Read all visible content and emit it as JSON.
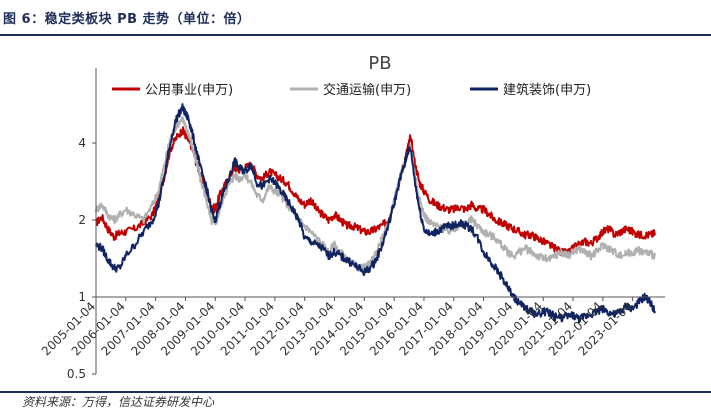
{
  "figure": {
    "title": "图 6：稳定类板块 PB 走势（单位：倍）",
    "source": "资料来源：万得，信达证券研发中心"
  },
  "chart_data": {
    "type": "line",
    "title": "PB",
    "xlabel": "",
    "ylabel": "",
    "y_scale": "log",
    "ylim": [
      0.5,
      6
    ],
    "yticks": [
      0.5,
      1,
      2,
      4
    ],
    "ytick_labels": [
      "0.5",
      "1",
      "2",
      "4"
    ],
    "xlim": [
      2005.0,
      2023.75
    ],
    "xticks": [
      2005.0,
      2006.0,
      2007.0,
      2008.0,
      2009.0,
      2010.0,
      2011.0,
      2012.0,
      2013.0,
      2014.0,
      2015.0,
      2016.0,
      2017.0,
      2018.0,
      2019.0,
      2020.0,
      2021.0,
      2022.0,
      2023.0
    ],
    "xtick_labels": [
      "2005-01-04",
      "2006-01-04",
      "2007-01-04",
      "2008-01-04",
      "2009-01-04",
      "2010-01-04",
      "2011-01-04",
      "2012-01-04",
      "2013-01-04",
      "2014-01-04",
      "2015-01-04",
      "2016-01-04",
      "2017-01-04",
      "2018-01-04",
      "2019-01-04",
      "2020-01-04",
      "2021-01-04",
      "2022-01-04",
      "2023-01-04"
    ],
    "legend_position": "top",
    "series": [
      {
        "name": "公用事业(申万)",
        "color": "#c00000",
        "x": [
          2005.0,
          2005.2,
          2005.4,
          2005.6,
          2005.8,
          2006.0,
          2006.3,
          2006.6,
          2006.9,
          2007.1,
          2007.3,
          2007.5,
          2007.7,
          2007.9,
          2008.0,
          2008.1,
          2008.2,
          2008.35,
          2008.5,
          2008.7,
          2008.85,
          2009.0,
          2009.15,
          2009.3,
          2009.5,
          2009.65,
          2009.8,
          2010.0,
          2010.2,
          2010.4,
          2010.6,
          2010.8,
          2011.0,
          2011.2,
          2011.4,
          2011.6,
          2011.8,
          2012.0,
          2012.2,
          2012.4,
          2012.6,
          2012.8,
          2013.0,
          2013.2,
          2013.4,
          2013.6,
          2013.8,
          2014.0,
          2014.2,
          2014.4,
          2014.6,
          2014.8,
          2015.0,
          2015.2,
          2015.35,
          2015.45,
          2015.55,
          2015.7,
          2015.85,
          2016.0,
          2016.2,
          2016.4,
          2016.6,
          2016.8,
          2017.0,
          2017.2,
          2017.4,
          2017.6,
          2017.8,
          2018.0,
          2018.2,
          2018.4,
          2018.6,
          2018.8,
          2019.0,
          2019.2,
          2019.4,
          2019.6,
          2019.8,
          2020.0,
          2020.2,
          2020.4,
          2020.6,
          2020.8,
          2021.0,
          2021.2,
          2021.4,
          2021.6,
          2021.8,
          2022.0,
          2022.2,
          2022.4,
          2022.6,
          2022.8,
          2023.0,
          2023.2,
          2023.4,
          2023.6,
          2023.75
        ],
        "values": [
          1.95,
          2.05,
          1.85,
          1.72,
          1.78,
          1.8,
          1.85,
          1.95,
          2.1,
          2.4,
          3.0,
          3.8,
          4.2,
          4.5,
          4.3,
          4.1,
          3.9,
          3.4,
          3.0,
          2.6,
          2.3,
          2.2,
          2.5,
          2.7,
          3.0,
          3.2,
          3.15,
          3.2,
          3.3,
          3.0,
          2.9,
          3.1,
          3.0,
          2.9,
          2.8,
          2.6,
          2.4,
          2.3,
          2.4,
          2.2,
          2.1,
          2.0,
          2.1,
          2.0,
          1.9,
          1.9,
          1.85,
          1.8,
          1.8,
          1.85,
          1.9,
          2.0,
          2.4,
          2.9,
          3.4,
          3.8,
          4.2,
          3.3,
          2.8,
          2.6,
          2.4,
          2.3,
          2.25,
          2.2,
          2.2,
          2.25,
          2.2,
          2.3,
          2.2,
          2.2,
          2.1,
          2.0,
          1.95,
          1.9,
          1.85,
          1.8,
          1.75,
          1.75,
          1.7,
          1.65,
          1.6,
          1.55,
          1.5,
          1.48,
          1.55,
          1.6,
          1.65,
          1.62,
          1.7,
          1.8,
          1.85,
          1.75,
          1.8,
          1.85,
          1.8,
          1.75,
          1.75,
          1.75,
          1.78
        ]
      },
      {
        "name": "交通运输(申万)",
        "color": "#b0b0b0",
        "x": [
          2005.0,
          2005.2,
          2005.4,
          2005.6,
          2005.8,
          2006.0,
          2006.3,
          2006.6,
          2006.9,
          2007.1,
          2007.3,
          2007.5,
          2007.7,
          2007.9,
          2008.0,
          2008.1,
          2008.2,
          2008.35,
          2008.5,
          2008.7,
          2008.85,
          2009.0,
          2009.15,
          2009.3,
          2009.5,
          2009.65,
          2009.8,
          2010.0,
          2010.2,
          2010.4,
          2010.6,
          2010.8,
          2011.0,
          2011.2,
          2011.4,
          2011.6,
          2011.8,
          2012.0,
          2012.2,
          2012.4,
          2012.6,
          2012.8,
          2013.0,
          2013.2,
          2013.4,
          2013.6,
          2013.8,
          2014.0,
          2014.2,
          2014.4,
          2014.6,
          2014.8,
          2015.0,
          2015.2,
          2015.35,
          2015.45,
          2015.55,
          2015.7,
          2015.85,
          2016.0,
          2016.2,
          2016.4,
          2016.6,
          2016.8,
          2017.0,
          2017.2,
          2017.4,
          2017.6,
          2017.8,
          2018.0,
          2018.2,
          2018.4,
          2018.6,
          2018.8,
          2019.0,
          2019.2,
          2019.4,
          2019.6,
          2019.8,
          2020.0,
          2020.2,
          2020.4,
          2020.6,
          2020.8,
          2021.0,
          2021.2,
          2021.4,
          2021.6,
          2021.8,
          2022.0,
          2022.2,
          2022.4,
          2022.6,
          2022.8,
          2023.0,
          2023.2,
          2023.4,
          2023.6,
          2023.75
        ],
        "values": [
          2.2,
          2.3,
          2.1,
          2.0,
          2.1,
          2.2,
          2.1,
          2.0,
          2.3,
          2.6,
          3.3,
          4.2,
          4.7,
          5.0,
          4.6,
          4.4,
          4.0,
          3.4,
          2.9,
          2.4,
          2.0,
          1.9,
          2.2,
          2.5,
          2.8,
          3.0,
          2.9,
          3.0,
          2.8,
          2.5,
          2.4,
          2.7,
          2.6,
          2.5,
          2.3,
          2.2,
          2.0,
          1.9,
          1.8,
          1.7,
          1.6,
          1.5,
          1.6,
          1.5,
          1.4,
          1.35,
          1.3,
          1.3,
          1.35,
          1.5,
          1.7,
          1.9,
          2.4,
          2.9,
          3.3,
          3.6,
          3.9,
          3.0,
          2.4,
          2.1,
          1.95,
          1.9,
          1.85,
          1.8,
          1.85,
          1.9,
          1.95,
          2.0,
          1.9,
          1.8,
          1.75,
          1.7,
          1.6,
          1.5,
          1.45,
          1.5,
          1.55,
          1.5,
          1.45,
          1.42,
          1.4,
          1.45,
          1.5,
          1.45,
          1.5,
          1.55,
          1.5,
          1.45,
          1.5,
          1.6,
          1.55,
          1.5,
          1.45,
          1.48,
          1.5,
          1.52,
          1.5,
          1.48,
          1.45
        ]
      },
      {
        "name": "建筑装饰(申万)",
        "color": "#0f2460",
        "x": [
          2005.0,
          2005.2,
          2005.4,
          2005.6,
          2005.8,
          2006.0,
          2006.3,
          2006.6,
          2006.9,
          2007.1,
          2007.3,
          2007.5,
          2007.7,
          2007.9,
          2008.0,
          2008.1,
          2008.2,
          2008.35,
          2008.5,
          2008.7,
          2008.85,
          2009.0,
          2009.15,
          2009.3,
          2009.5,
          2009.65,
          2009.8,
          2010.0,
          2010.2,
          2010.4,
          2010.6,
          2010.8,
          2011.0,
          2011.2,
          2011.4,
          2011.6,
          2011.8,
          2012.0,
          2012.2,
          2012.4,
          2012.6,
          2012.8,
          2013.0,
          2013.2,
          2013.4,
          2013.6,
          2013.8,
          2014.0,
          2014.2,
          2014.4,
          2014.6,
          2014.8,
          2015.0,
          2015.2,
          2015.35,
          2015.45,
          2015.55,
          2015.7,
          2015.85,
          2016.0,
          2016.2,
          2016.4,
          2016.6,
          2016.8,
          2017.0,
          2017.2,
          2017.4,
          2017.6,
          2017.8,
          2018.0,
          2018.2,
          2018.4,
          2018.6,
          2018.8,
          2019.0,
          2019.2,
          2019.4,
          2019.6,
          2019.8,
          2020.0,
          2020.2,
          2020.4,
          2020.6,
          2020.8,
          2021.0,
          2021.2,
          2021.4,
          2021.6,
          2021.8,
          2022.0,
          2022.2,
          2022.4,
          2022.6,
          2022.8,
          2023.0,
          2023.2,
          2023.4,
          2023.6,
          2023.75
        ],
        "values": [
          1.6,
          1.55,
          1.4,
          1.3,
          1.3,
          1.45,
          1.6,
          1.8,
          2.0,
          2.3,
          3.0,
          4.0,
          5.0,
          5.5,
          5.2,
          5.0,
          4.5,
          3.8,
          3.2,
          2.7,
          2.2,
          2.0,
          2.3,
          2.6,
          3.0,
          3.4,
          3.2,
          3.1,
          3.3,
          2.8,
          2.7,
          2.9,
          2.8,
          2.6,
          2.4,
          2.2,
          2.0,
          1.7,
          1.65,
          1.6,
          1.55,
          1.45,
          1.5,
          1.45,
          1.4,
          1.35,
          1.3,
          1.25,
          1.3,
          1.4,
          1.6,
          1.9,
          2.3,
          2.9,
          3.3,
          3.7,
          3.8,
          2.8,
          2.2,
          1.85,
          1.75,
          1.8,
          1.85,
          1.9,
          1.9,
          1.95,
          1.9,
          1.85,
          1.7,
          1.5,
          1.4,
          1.3,
          1.2,
          1.1,
          1.0,
          0.95,
          0.9,
          0.88,
          0.85,
          0.88,
          0.87,
          0.84,
          0.83,
          0.84,
          0.85,
          0.82,
          0.84,
          0.86,
          0.88,
          0.9,
          0.87,
          0.85,
          0.88,
          0.92,
          0.9,
          0.95,
          1.0,
          0.95,
          0.88
        ]
      }
    ]
  }
}
